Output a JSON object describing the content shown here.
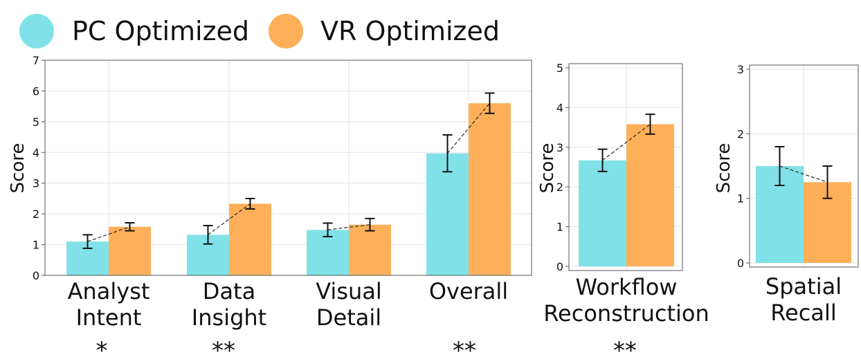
{
  "colors": {
    "pc": "#80E2E8",
    "vr": "#FDB059",
    "grid": "#e3e3e3",
    "axis": "#555555"
  },
  "legend": {
    "items": [
      {
        "label": "PC Optimized",
        "color": "#80E2E8"
      },
      {
        "label": "VR Optimized",
        "color": "#FDB059"
      }
    ]
  },
  "chart_data": [
    {
      "type": "bar",
      "ylabel": "Score",
      "ylim": [
        0,
        7
      ],
      "yticks": [
        "0",
        "1",
        "2",
        "3",
        "4",
        "5",
        "6",
        "7"
      ],
      "categories": [
        {
          "lines": [
            "Analyst",
            "Intent"
          ],
          "significance": "*"
        },
        {
          "lines": [
            "Data",
            "Insight"
          ],
          "significance": "**"
        },
        {
          "lines": [
            "Visual",
            "Detail"
          ],
          "significance": ""
        },
        {
          "lines": [
            "Overall"
          ],
          "significance": "**"
        }
      ],
      "series": [
        {
          "name": "PC Optimized",
          "values": [
            1.1,
            1.32,
            1.48,
            3.97
          ],
          "errors": [
            0.22,
            0.3,
            0.22,
            0.6
          ]
        },
        {
          "name": "VR Optimized",
          "values": [
            1.58,
            2.33,
            1.65,
            5.6
          ],
          "errors": [
            0.13,
            0.17,
            0.2,
            0.33
          ]
        }
      ]
    },
    {
      "type": "bar",
      "ylabel": "Score",
      "ylim": [
        0,
        5
      ],
      "yticks": [
        "0",
        "1",
        "2",
        "3",
        "4",
        "5"
      ],
      "categories": [
        {
          "lines": [
            "Workflow",
            "Reconstruction"
          ],
          "significance": "**"
        }
      ],
      "series": [
        {
          "name": "PC Optimized",
          "values": [
            2.67
          ],
          "errors": [
            0.28
          ]
        },
        {
          "name": "VR Optimized",
          "values": [
            3.58
          ],
          "errors": [
            0.25
          ]
        }
      ]
    },
    {
      "type": "bar",
      "ylabel": "Score",
      "ylim": [
        0,
        3
      ],
      "yticks": [
        "0",
        "1",
        "2",
        "3"
      ],
      "categories": [
        {
          "lines": [
            "Spatial",
            "Recall"
          ],
          "significance": ""
        }
      ],
      "series": [
        {
          "name": "PC Optimized",
          "values": [
            1.5
          ],
          "errors": [
            0.3
          ]
        },
        {
          "name": "VR Optimized",
          "values": [
            1.25
          ],
          "errors": [
            0.25
          ]
        }
      ]
    }
  ]
}
